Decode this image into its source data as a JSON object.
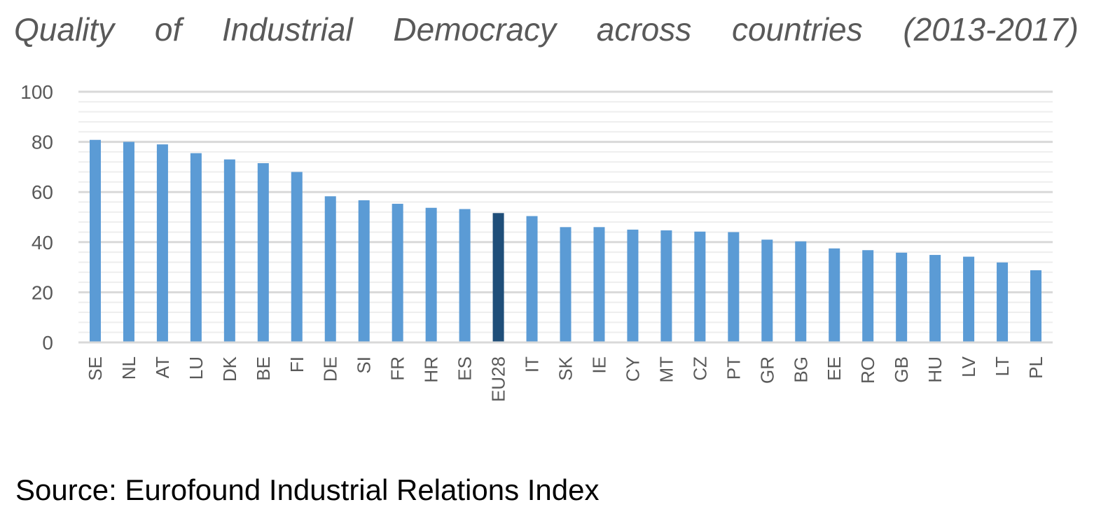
{
  "chart_data": {
    "type": "bar",
    "title": "Quality of Industrial Democracy across countries (2013-2017)",
    "xlabel": "",
    "ylabel": "",
    "ylim": [
      0,
      100
    ],
    "yticks": [
      0,
      20,
      40,
      60,
      80,
      100
    ],
    "grid": true,
    "legend": "none",
    "categories": [
      "SE",
      "NL",
      "AT",
      "LU",
      "DK",
      "BE",
      "FI",
      "DE",
      "SI",
      "FR",
      "HR",
      "ES",
      "EU28",
      "IT",
      "SK",
      "IE",
      "CY",
      "MT",
      "CZ",
      "PT",
      "GR",
      "BG",
      "EE",
      "RO",
      "GB",
      "HU",
      "LV",
      "LT",
      "PL"
    ],
    "values": [
      80.8,
      80.0,
      79.0,
      75.5,
      73.0,
      71.5,
      68.0,
      58.3,
      56.7,
      55.3,
      53.7,
      53.2,
      51.6,
      50.4,
      46.0,
      46.0,
      45.0,
      44.7,
      44.2,
      44.0,
      41.0,
      40.3,
      37.5,
      36.8,
      35.8,
      34.9,
      34.2,
      31.9,
      28.8
    ],
    "bar_color": "#5b9bd5",
    "highlight_category": "EU28",
    "highlight_color": "#1f4e79",
    "gridline_color": "#d9d9d9"
  },
  "source": "Source: Eurofound Industrial Relations Index"
}
